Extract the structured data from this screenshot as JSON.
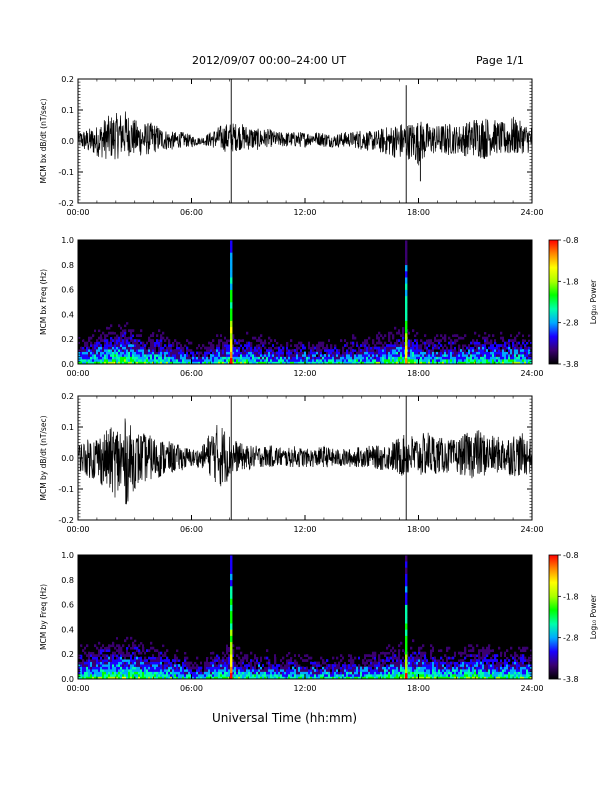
{
  "header": {
    "date_range": "2012/09/07  00:00–24:00 UT",
    "page": "Page 1/1"
  },
  "footer": {
    "xlabel": "Universal Time (hh:mm)"
  },
  "colorbar": {
    "label": "Log₁₀ Power",
    "ticks": [
      "-0.8",
      "-1.8",
      "-2.8",
      "-3.8"
    ],
    "range": [
      -3.8,
      -0.8
    ],
    "colors": [
      "#000000",
      "#3a0070",
      "#1a00ff",
      "#00aaff",
      "#00ffaa",
      "#00ff00",
      "#aaff00",
      "#ffff00",
      "#ff8800",
      "#ff0000"
    ]
  },
  "chart_data": [
    {
      "type": "line",
      "ylabel": "MCM bx dB/dt (nT/sec)",
      "xlim": [
        0,
        24
      ],
      "ylim": [
        -0.2,
        0.2
      ],
      "x_ticks": [
        "00:00",
        "06:00",
        "12:00",
        "18:00",
        "24:00"
      ],
      "y_ticks": [
        "-0.2",
        "-0.1",
        "0.0",
        "0.1",
        "0.2"
      ],
      "series": [
        {
          "x": [
            0.0,
            0.5,
            1.0,
            1.5,
            2.0,
            2.5,
            3.0,
            3.5,
            4.0,
            4.5,
            5.0,
            5.5,
            6.0,
            6.5,
            7.0,
            7.5,
            8.0,
            8.5,
            9.0,
            9.5,
            10.0,
            10.5,
            11.0,
            11.5,
            12.0,
            12.5,
            13.0,
            13.5,
            14.0,
            14.5,
            15.0,
            15.5,
            16.0,
            16.5,
            17.0,
            17.5,
            18.0,
            18.5,
            19.0,
            19.5,
            20.0,
            20.5,
            21.0,
            21.5,
            22.0,
            22.5,
            23.0,
            23.5,
            24.0
          ],
          "y_max": [
            0.03,
            0.04,
            0.05,
            0.08,
            0.09,
            0.1,
            0.07,
            0.06,
            0.06,
            0.04,
            0.03,
            0.03,
            0.02,
            0.01,
            0.03,
            0.05,
            0.06,
            0.06,
            0.05,
            0.04,
            0.04,
            0.03,
            0.03,
            0.03,
            0.03,
            0.03,
            0.03,
            0.02,
            0.03,
            0.03,
            0.04,
            0.03,
            0.04,
            0.05,
            0.06,
            0.06,
            0.07,
            0.06,
            0.05,
            0.06,
            0.05,
            0.06,
            0.08,
            0.08,
            0.07,
            0.06,
            0.08,
            0.06,
            0.05
          ],
          "y_min": [
            -0.02,
            -0.04,
            -0.05,
            -0.06,
            -0.06,
            -0.05,
            -0.05,
            -0.05,
            -0.04,
            -0.03,
            -0.03,
            -0.02,
            -0.02,
            -0.01,
            -0.02,
            -0.03,
            -0.04,
            -0.03,
            -0.03,
            -0.03,
            -0.02,
            -0.02,
            -0.02,
            -0.02,
            -0.02,
            -0.01,
            -0.02,
            -0.02,
            -0.02,
            -0.02,
            -0.03,
            -0.03,
            -0.04,
            -0.05,
            -0.06,
            -0.06,
            -0.08,
            -0.05,
            -0.04,
            -0.05,
            -0.04,
            -0.05,
            -0.05,
            -0.06,
            -0.04,
            -0.05,
            -0.05,
            -0.04,
            -0.04
          ]
        }
      ],
      "spikes": [
        {
          "x": 8.1,
          "y_min": -0.2,
          "y_max": 0.2
        },
        {
          "x": 17.35,
          "y_min": -0.2,
          "y_max": 0.18
        },
        {
          "x": 18.1,
          "y_min": -0.13,
          "y_max": 0.05
        }
      ]
    },
    {
      "type": "heatmap",
      "ylabel": "MCM bx Freq (Hz)",
      "xlim": [
        0,
        24
      ],
      "ylim": [
        0,
        1.0
      ],
      "x_ticks": [
        "00:00",
        "06:00",
        "12:00",
        "18:00",
        "24:00"
      ],
      "y_ticks": [
        "0.0",
        "0.2",
        "0.4",
        "0.6",
        "0.8",
        "1.0"
      ],
      "zlim": [
        -3.8,
        -0.8
      ],
      "activity": [
        0.6,
        0.7,
        0.8,
        0.9,
        1.0,
        1.0,
        0.9,
        0.8,
        0.8,
        0.7,
        0.6,
        0.5,
        0.4,
        0.3,
        0.5,
        0.7,
        0.8,
        0.7,
        0.7,
        0.6,
        0.6,
        0.5,
        0.5,
        0.5,
        0.5,
        0.5,
        0.5,
        0.5,
        0.5,
        0.6,
        0.6,
        0.6,
        0.7,
        0.8,
        0.9,
        0.9,
        0.8,
        0.7,
        0.7,
        0.7,
        0.6,
        0.7,
        0.8,
        0.8,
        0.7,
        0.7,
        0.8,
        0.7,
        0.6
      ],
      "spikes": [
        {
          "x": 8.1,
          "power": -1.3
        },
        {
          "x": 17.35,
          "power": -1.6
        }
      ]
    },
    {
      "type": "line",
      "ylabel": "MCM by dB/dt (nT/sec)",
      "xlim": [
        0,
        24
      ],
      "ylim": [
        -0.2,
        0.2
      ],
      "x_ticks": [
        "00:00",
        "06:00",
        "12:00",
        "18:00",
        "24:00"
      ],
      "y_ticks": [
        "-0.2",
        "-0.1",
        "0.0",
        "0.1",
        "0.2"
      ],
      "series": [
        {
          "x": [
            0.0,
            0.5,
            1.0,
            1.5,
            2.0,
            2.5,
            3.0,
            3.5,
            4.0,
            4.5,
            5.0,
            5.5,
            6.0,
            6.5,
            7.0,
            7.5,
            8.0,
            8.5,
            9.0,
            9.5,
            10.0,
            10.5,
            11.0,
            11.5,
            12.0,
            12.5,
            13.0,
            13.5,
            14.0,
            14.5,
            15.0,
            15.5,
            16.0,
            16.5,
            17.0,
            17.5,
            18.0,
            18.5,
            19.0,
            19.5,
            20.0,
            20.5,
            21.0,
            21.5,
            22.0,
            22.5,
            23.0,
            23.5,
            24.0
          ],
          "y_max": [
            0.05,
            0.06,
            0.08,
            0.09,
            0.11,
            0.13,
            0.09,
            0.08,
            0.07,
            0.06,
            0.05,
            0.04,
            0.03,
            0.03,
            0.09,
            0.12,
            0.08,
            0.05,
            0.04,
            0.04,
            0.04,
            0.04,
            0.03,
            0.04,
            0.03,
            0.03,
            0.04,
            0.03,
            0.03,
            0.03,
            0.04,
            0.04,
            0.04,
            0.05,
            0.07,
            0.08,
            0.07,
            0.09,
            0.07,
            0.06,
            0.06,
            0.08,
            0.1,
            0.08,
            0.07,
            0.07,
            0.08,
            0.08,
            0.06
          ],
          "y_min": [
            -0.04,
            -0.06,
            -0.08,
            -0.1,
            -0.13,
            -0.16,
            -0.1,
            -0.08,
            -0.07,
            -0.06,
            -0.05,
            -0.04,
            -0.03,
            -0.03,
            -0.06,
            -0.1,
            -0.07,
            -0.04,
            -0.04,
            -0.03,
            -0.03,
            -0.03,
            -0.03,
            -0.03,
            -0.03,
            -0.03,
            -0.03,
            -0.03,
            -0.03,
            -0.03,
            -0.03,
            -0.03,
            -0.04,
            -0.04,
            -0.06,
            -0.06,
            -0.06,
            -0.06,
            -0.05,
            -0.05,
            -0.05,
            -0.06,
            -0.07,
            -0.06,
            -0.05,
            -0.05,
            -0.06,
            -0.06,
            -0.05
          ]
        }
      ],
      "spikes": [
        {
          "x": 8.1,
          "y_min": -0.2,
          "y_max": 0.2
        },
        {
          "x": 17.35,
          "y_min": -0.2,
          "y_max": 0.2
        }
      ]
    },
    {
      "type": "heatmap",
      "ylabel": "MCM by Freq (Hz)",
      "xlim": [
        0,
        24
      ],
      "ylim": [
        0,
        1.0
      ],
      "x_ticks": [
        "00:00",
        "06:00",
        "12:00",
        "18:00",
        "24:00"
      ],
      "y_ticks": [
        "0.0",
        "0.2",
        "0.4",
        "0.6",
        "0.8",
        "1.0"
      ],
      "zlim": [
        -3.8,
        -0.8
      ],
      "activity": [
        0.7,
        0.8,
        0.9,
        1.0,
        1.0,
        1.0,
        1.0,
        0.9,
        0.9,
        0.8,
        0.7,
        0.6,
        0.4,
        0.3,
        0.6,
        0.8,
        0.8,
        0.7,
        0.6,
        0.6,
        0.6,
        0.5,
        0.5,
        0.5,
        0.5,
        0.5,
        0.5,
        0.5,
        0.5,
        0.6,
        0.6,
        0.6,
        0.7,
        0.8,
        0.9,
        0.9,
        0.9,
        0.8,
        0.8,
        0.7,
        0.7,
        0.8,
        0.9,
        0.8,
        0.8,
        0.7,
        0.8,
        0.8,
        0.7
      ],
      "spikes": [
        {
          "x": 8.1,
          "power": -1.3
        },
        {
          "x": 17.35,
          "power": -1.6
        }
      ]
    }
  ]
}
